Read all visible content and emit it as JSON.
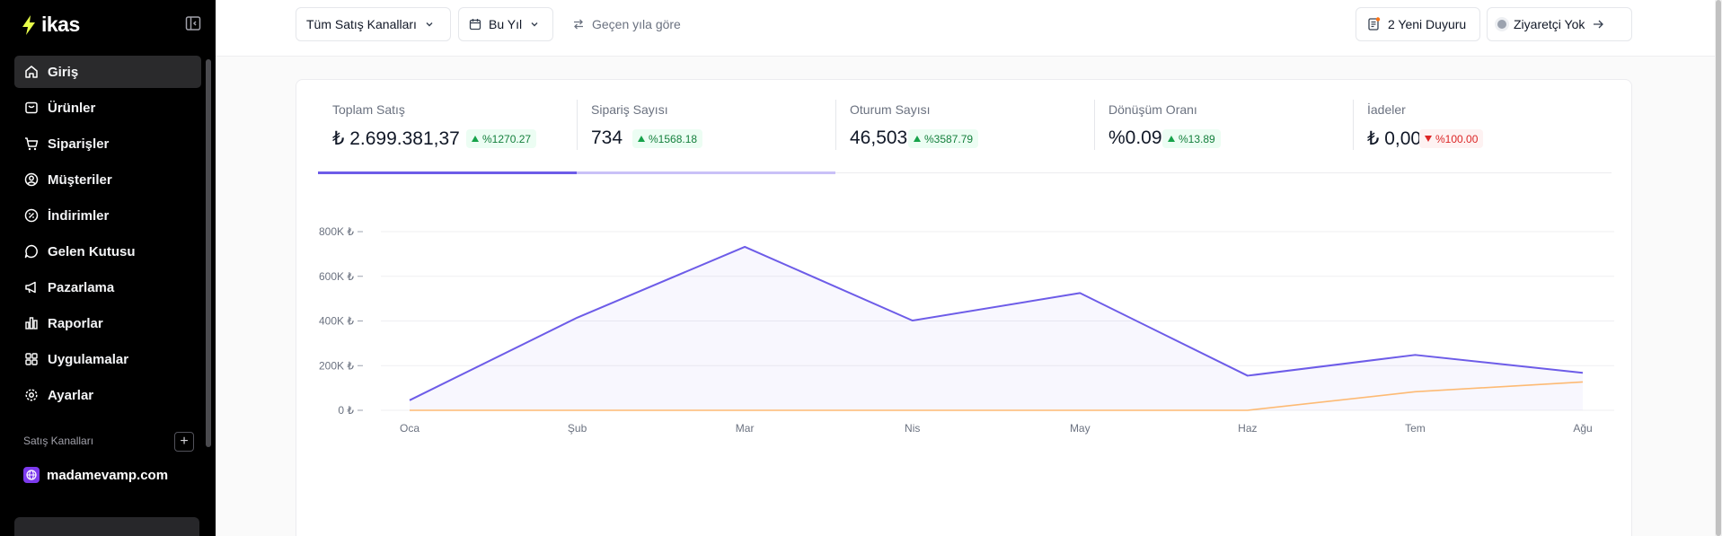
{
  "sidebar": {
    "brand": "ikas",
    "nav": [
      {
        "label": "Giriş",
        "icon": "home-icon",
        "active": true
      },
      {
        "label": "Ürünler",
        "icon": "product-icon"
      },
      {
        "label": "Siparişler",
        "icon": "cart-icon"
      },
      {
        "label": "Müşteriler",
        "icon": "user-circle-icon"
      },
      {
        "label": "İndirimler",
        "icon": "discount-icon"
      },
      {
        "label": "Gelen Kutusu",
        "icon": "chat-icon"
      },
      {
        "label": "Pazarlama",
        "icon": "megaphone-icon"
      },
      {
        "label": "Raporlar",
        "icon": "bar-chart-icon"
      },
      {
        "label": "Uygulamalar",
        "icon": "grid-icon"
      },
      {
        "label": "Ayarlar",
        "icon": "gear-icon"
      }
    ],
    "sales_channels_label": "Satış Kanalları",
    "channel": "madamevamp.com"
  },
  "topbar": {
    "channel_filter": "Tüm Satış Kanalları",
    "date_filter": "Bu Yıl",
    "compare": "Geçen yıla göre",
    "announcements": "2 Yeni Duyuru",
    "visitors": "Ziyaretçi Yok"
  },
  "stats": [
    {
      "label": "Toplam Satış",
      "value": "₺ 2.699.381,37",
      "change": "%1270.27",
      "trend": "up"
    },
    {
      "label": "Sipariş Sayısı",
      "value": "734",
      "change": "%1568.18",
      "trend": "up"
    },
    {
      "label": "Oturum Sayısı",
      "value": "46,503",
      "change": "%3587.79",
      "trend": "up"
    },
    {
      "label": "Dönüşüm Oranı",
      "value": "%0.09",
      "change": "%13.89",
      "trend": "up"
    },
    {
      "label": "İadeler",
      "value": "₺ 0,00",
      "change": "%100.00",
      "trend": "down"
    }
  ],
  "colors": {
    "accent": "#6d5ce8",
    "secondary_series": "#fdba74",
    "up": "#16a34a",
    "down": "#dc2626"
  },
  "chart_data": {
    "type": "line",
    "categories": [
      "Oca",
      "Şub",
      "Mar",
      "Nis",
      "May",
      "Haz",
      "Tem",
      "Ağu"
    ],
    "series": [
      {
        "values": [
          45000,
          415000,
          732000,
          402000,
          525000,
          155000,
          248000,
          168000
        ],
        "color": "#6d5ce8",
        "fill": true
      },
      {
        "values": [
          0,
          0,
          0,
          0,
          0,
          0,
          83000,
          127000
        ],
        "color": "#fdba74",
        "fill": false
      }
    ],
    "yticks": [
      "0 ₺",
      "200K ₺",
      "400K ₺",
      "600K ₺",
      "800K ₺"
    ],
    "ylim": [
      0,
      800000
    ],
    "grid": true
  }
}
